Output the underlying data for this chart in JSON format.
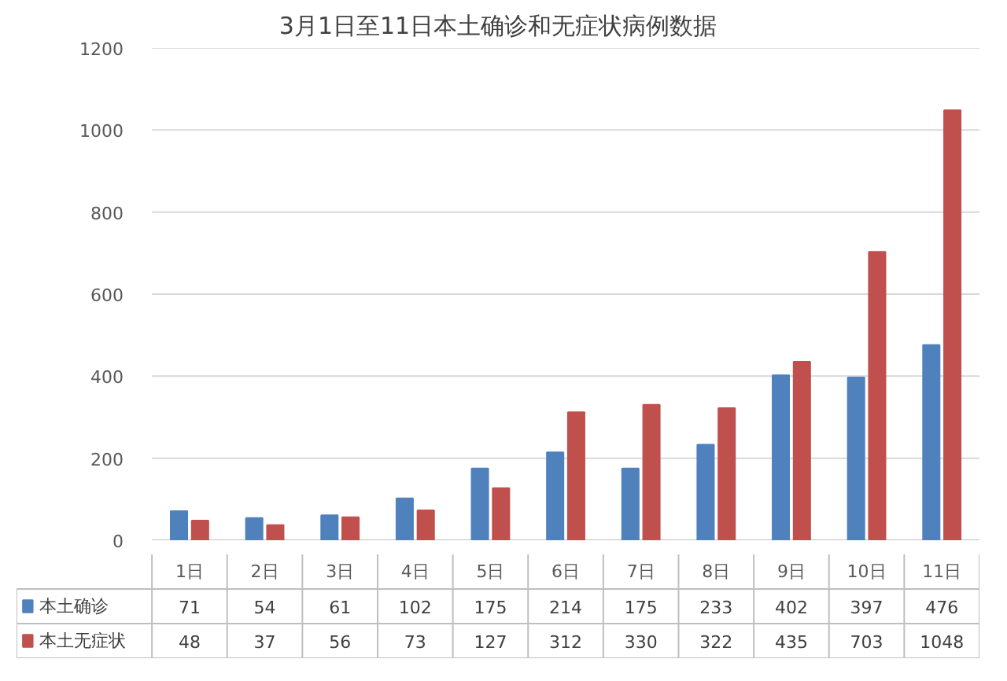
{
  "chart_data": {
    "type": "bar",
    "title": "3月1日至11日本土确诊和无症状病例数据",
    "categories": [
      "1日",
      "2日",
      "3日",
      "4日",
      "5日",
      "6日",
      "7日",
      "8日",
      "9日",
      "10日",
      "11日"
    ],
    "series": [
      {
        "name": "本土确诊",
        "color": "#4f81bd",
        "values": [
          71,
          54,
          61,
          102,
          175,
          214,
          175,
          233,
          402,
          397,
          476
        ]
      },
      {
        "name": "本土无症状",
        "color": "#c0504d",
        "values": [
          48,
          37,
          56,
          73,
          127,
          312,
          330,
          322,
          435,
          703,
          1048
        ]
      }
    ],
    "ylim": [
      0,
      1200
    ],
    "yticks": [
      0,
      200,
      400,
      600,
      800,
      1000,
      1200
    ],
    "grid": "y",
    "legend": "bottom",
    "data_labels": true
  }
}
